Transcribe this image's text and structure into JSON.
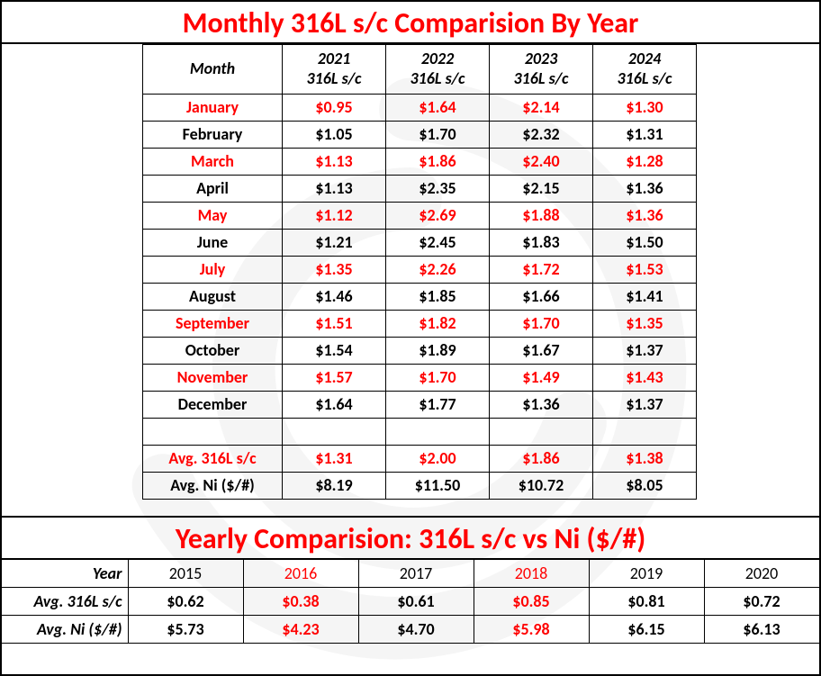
{
  "colors": {
    "accent": "#ff0000",
    "text": "#000000",
    "border": "#000000",
    "background": "#ffffff",
    "watermark": "#9aa0a6"
  },
  "typography": {
    "title_fontsize_pt": 24,
    "yearly_title_fontsize_pt": 24,
    "header_fontsize_pt": 14,
    "cell_fontsize_pt": 14,
    "font_family": "Calibri"
  },
  "monthly": {
    "title": "Monthly 316L s/c Comparision By Year",
    "header": {
      "month_label": "Month",
      "sub_label": "316L s/c",
      "years": [
        "2021",
        "2022",
        "2023",
        "2024"
      ]
    },
    "rows": [
      {
        "label": "January",
        "highlight": true,
        "values": [
          "$0.95",
          "$1.64",
          "$2.14",
          "$1.30"
        ]
      },
      {
        "label": "February",
        "highlight": false,
        "values": [
          "$1.05",
          "$1.70",
          "$2.32",
          "$1.31"
        ]
      },
      {
        "label": "March",
        "highlight": true,
        "values": [
          "$1.13",
          "$1.86",
          "$2.40",
          "$1.28"
        ]
      },
      {
        "label": "April",
        "highlight": false,
        "values": [
          "$1.13",
          "$2.35",
          "$2.15",
          "$1.36"
        ]
      },
      {
        "label": "May",
        "highlight": true,
        "values": [
          "$1.12",
          "$2.69",
          "$1.88",
          "$1.36"
        ]
      },
      {
        "label": "June",
        "highlight": false,
        "values": [
          "$1.21",
          "$2.45",
          "$1.83",
          "$1.50"
        ]
      },
      {
        "label": "July",
        "highlight": true,
        "values": [
          "$1.35",
          "$2.26",
          "$1.72",
          "$1.53"
        ]
      },
      {
        "label": "August",
        "highlight": false,
        "values": [
          "$1.46",
          "$1.85",
          "$1.66",
          "$1.41"
        ]
      },
      {
        "label": "September",
        "highlight": true,
        "values": [
          "$1.51",
          "$1.82",
          "$1.70",
          "$1.35"
        ]
      },
      {
        "label": "October",
        "highlight": false,
        "values": [
          "$1.54",
          "$1.89",
          "$1.67",
          "$1.37"
        ]
      },
      {
        "label": "November",
        "highlight": true,
        "values": [
          "$1.57",
          "$1.70",
          "$1.49",
          "$1.43"
        ]
      },
      {
        "label": "December",
        "highlight": false,
        "values": [
          "$1.64",
          "$1.77",
          "$1.36",
          "$1.37"
        ]
      }
    ],
    "avg316": {
      "label": "Avg. 316L s/c",
      "highlight": true,
      "values": [
        "$1.31",
        "$2.00",
        "$1.86",
        "$1.38"
      ]
    },
    "avgni": {
      "label": "Avg. Ni ($/#)",
      "values": [
        "$8.19",
        "$11.50",
        "$10.72",
        "$8.05"
      ]
    }
  },
  "yearly": {
    "title": "Yearly Comparision: 316L s/c vs Ni ($/#)",
    "header_label": "Year",
    "columns": [
      {
        "year": "2015",
        "highlight": false
      },
      {
        "year": "2016",
        "highlight": true
      },
      {
        "year": "2017",
        "highlight": false
      },
      {
        "year": "2018",
        "highlight": true
      },
      {
        "year": "2019",
        "highlight": false
      },
      {
        "year": "2020",
        "highlight": false
      }
    ],
    "rows": [
      {
        "label": "Avg. 316L s/c",
        "values": [
          "$0.62",
          "$0.38",
          "$0.61",
          "$0.85",
          "$0.81",
          "$0.72"
        ]
      },
      {
        "label": "Avg. Ni ($/#)",
        "values": [
          "$5.73",
          "$4.23",
          "$4.70",
          "$5.98",
          "$6.15",
          "$6.13"
        ]
      }
    ]
  }
}
